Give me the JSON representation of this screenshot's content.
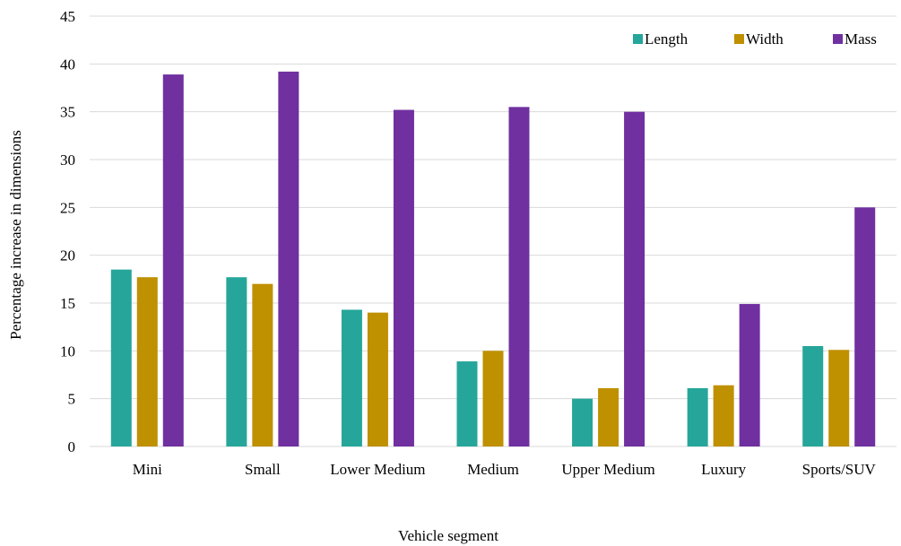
{
  "chart_data": {
    "type": "bar",
    "title": "",
    "xlabel": "Vehicle segment",
    "ylabel": "Percentage increase in dimensions",
    "ylim": [
      0,
      45
    ],
    "yticks": [
      0,
      5,
      10,
      15,
      20,
      25,
      30,
      35,
      40,
      45
    ],
    "grid": true,
    "legend_position": "top-right",
    "categories": [
      "Mini",
      "Small",
      "Lower Medium",
      "Medium",
      "Upper Medium",
      "Luxury",
      "Sports/SUV"
    ],
    "series": [
      {
        "name": "Length",
        "color": "#26a69a",
        "values": [
          18.5,
          17.7,
          14.3,
          8.9,
          5.0,
          6.1,
          10.5
        ]
      },
      {
        "name": "Width",
        "color": "#bf9000",
        "values": [
          17.7,
          17.0,
          14.0,
          10.0,
          6.1,
          6.4,
          10.1
        ]
      },
      {
        "name": "Mass",
        "color": "#7030a0",
        "values": [
          38.9,
          39.2,
          35.2,
          35.5,
          35.0,
          14.9,
          25.0
        ]
      }
    ]
  }
}
